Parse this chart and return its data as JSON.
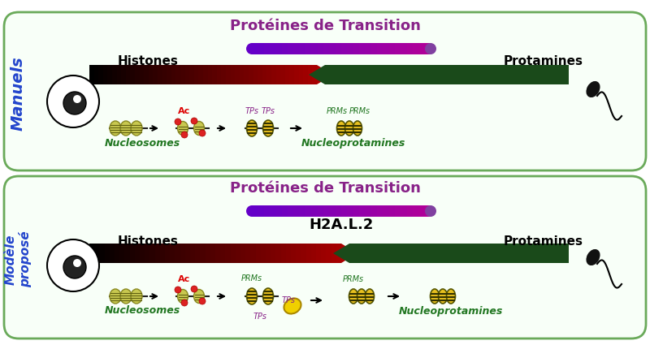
{
  "bg_color": "#ffffff",
  "border_color_top": "#6aaa5a",
  "border_color_bottom": "#6aaa5a",
  "panel1": {
    "label": "Manuels",
    "label_color": "#2255cc",
    "bg": "#f8fff8",
    "title": "Protéines de Transition",
    "title_color": "#882288",
    "histones_label": "Histones",
    "protamines_label": "Protamines",
    "nucleosomes_label": "Nucleosomes",
    "nucleoprotamines_label": "Nucleoprotamines",
    "ac_label": "Ac",
    "tps_label": "TPs",
    "prms_label": "PRMs"
  },
  "panel2": {
    "label": "Modèle\nproposé",
    "label_color": "#2255cc",
    "bg": "#f8fff8",
    "title": "Protéines de Transition",
    "title_color": "#882288",
    "histones_label": "Histones",
    "protamines_label": "Protamines",
    "nucleosomes_label": "Nucleosomes",
    "nucleoprotamines_label": "Nucleoprotamines",
    "h2al2_label": "H2A.L.2",
    "ac_label": "Ac",
    "tps_label": "TPs",
    "prms_label": "PRMs"
  }
}
